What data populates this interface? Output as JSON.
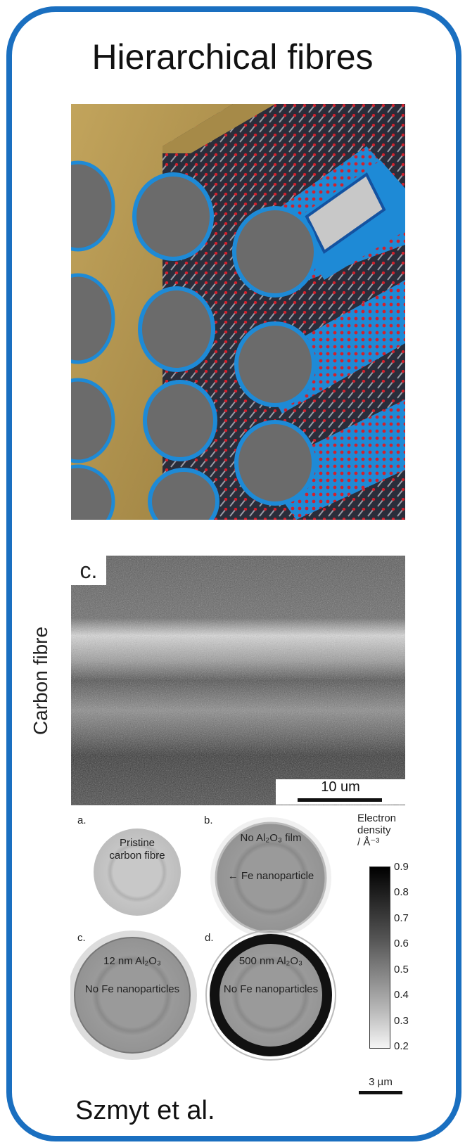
{
  "title": "Hierarchical fibres",
  "sem": {
    "panel_label": "c.",
    "side_label": "Carbon fibre",
    "scale": "10 um"
  },
  "xct": {
    "panels": [
      {
        "label": "a.",
        "text1": "Pristine",
        "text2": "carbon fibre"
      },
      {
        "label": "b.",
        "text1": "No Al₂O₃ film",
        "text2": "← Fe nanoparticle"
      },
      {
        "label": "c.",
        "text1": "12 nm Al₂O₃",
        "text2": "No Fe nanoparticles"
      },
      {
        "label": "d.",
        "text1": "500 nm Al₂O₃",
        "text2": "No Fe nanoparticles"
      }
    ],
    "colorbar_title": [
      "Electron",
      "density",
      "/ Å⁻³"
    ],
    "ticks": [
      "0.9",
      "0.8",
      "0.7",
      "0.6",
      "0.5",
      "0.4",
      "0.3",
      "0.2"
    ],
    "scale": "3 µm"
  },
  "author": "Szmyt et al.",
  "colors": {
    "frame": "#1a6fc0",
    "fibre_coat": "#1e8ad6",
    "nanotube_tip": "#d0212d",
    "matrix": "#b89a52"
  }
}
